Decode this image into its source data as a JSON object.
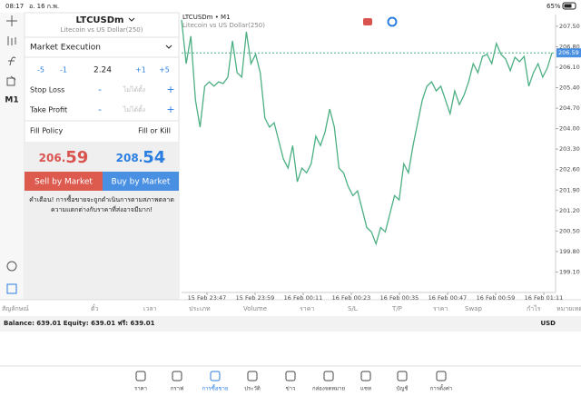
{
  "status_bar": {
    "time": "08:17",
    "date": "อ. 16 ก.พ.",
    "battery": "65%"
  },
  "toolbar": {
    "timeframe": "M1"
  },
  "order_panel": {
    "symbol": "LTCUSDm",
    "description": "Litecoin vs US Dollar(250)",
    "execution": "Market Execution",
    "volume_steps": [
      "-5",
      "-1",
      "+1",
      "+5"
    ],
    "volume": "2.24",
    "stop_loss": {
      "label": "Stop Loss",
      "minus": "-",
      "value": "ไม่ได้ตั้ง",
      "plus": "+"
    },
    "take_profit": {
      "label": "Take Profit",
      "minus": "-",
      "value": "ไม่ได้ตั้ง",
      "plus": "+"
    },
    "fill_policy": {
      "label": "Fill Policy",
      "value": "Fill or Kill"
    },
    "bid": {
      "main": "206.",
      "big": "59"
    },
    "ask": {
      "main": "208.",
      "big": "54"
    },
    "sell_button": "Sell by Market",
    "buy_button": "Buy by Market",
    "warning": [
      "คำเตือน! การซื้อขายจะถูกดำเนินการตามสภาพตลาด",
      "ความแตกต่างกับราคาที่ส่งอาจมีมาก!"
    ]
  },
  "chart_data": {
    "type": "line",
    "title": "LTCUSDm • M1",
    "subtitle": "Litecoin vs US Dollar(250)",
    "color": "#4caf82",
    "values": [
      207.72,
      206.22,
      207.16,
      204.98,
      204.05,
      205.45,
      205.6,
      205.45,
      205.6,
      205.54,
      205.76,
      207.0,
      205.91,
      205.76,
      207.31,
      206.22,
      206.54,
      205.91,
      204.36,
      204.05,
      204.2,
      203.58,
      202.96,
      202.65,
      203.42,
      202.18,
      202.65,
      202.49,
      202.8,
      203.74,
      203.42,
      203.89,
      204.67,
      204.05,
      202.65,
      202.49,
      202.02,
      201.71,
      201.87,
      201.25,
      200.62,
      200.47,
      200.06,
      200.62,
      200.47,
      201.09,
      201.71,
      201.56,
      202.8,
      202.49,
      203.42,
      204.2,
      204.98,
      205.45,
      205.6,
      205.29,
      205.45,
      204.98,
      204.51,
      205.29,
      204.82,
      205.14,
      205.6,
      206.22,
      205.91,
      206.47,
      206.54,
      206.22,
      206.91,
      206.54,
      206.38,
      205.98,
      206.44,
      206.29,
      206.47,
      205.45,
      205.91,
      206.22,
      205.76,
      206.07,
      206.59
    ],
    "ylim": [
      198.4,
      207.9
    ],
    "yticks": [
      {
        "value": 207.5,
        "label": "207.50"
      },
      {
        "value": 206.8,
        "label": "206.80"
      },
      {
        "value": 206.1,
        "label": "206.10"
      },
      {
        "value": 205.4,
        "label": "205.40"
      },
      {
        "value": 204.7,
        "label": "204.70"
      },
      {
        "value": 204.0,
        "label": "204.00"
      },
      {
        "value": 203.3,
        "label": "203.30"
      },
      {
        "value": 202.6,
        "label": "202.60"
      },
      {
        "value": 201.9,
        "label": "201.90"
      },
      {
        "value": 201.2,
        "label": "201.20"
      },
      {
        "value": 200.5,
        "label": "200.50"
      },
      {
        "value": 199.8,
        "label": "199.80"
      },
      {
        "value": 199.1,
        "label": "199.10"
      }
    ],
    "bid_line": 206.59,
    "x_labels": [
      "15 Feb 23:47",
      "15 Feb 23:59",
      "16 Feb 00:11",
      "16 Feb 00:23",
      "16 Feb 00:35",
      "16 Feb 00:47",
      "16 Feb 00:59",
      "16 Feb 01:11"
    ]
  },
  "trade_table": {
    "columns": [
      "สัญลักษณ์",
      "ตั๋ว",
      "เวลา",
      "ประเภท",
      "Volume",
      "ราคา",
      "S/L",
      "T/P",
      "ราคา",
      "Swap",
      "กำไร",
      "หมายเหตุ"
    ],
    "balance": "Balance: 639.01 Equity: 639.01 ฟรี: 639.01",
    "currency": "USD"
  },
  "nav": [
    "ราคา",
    "กราฟ",
    "การซื้อขาย",
    "ประวัติ",
    "ข่าว",
    "กล่องจดหมาย",
    "แชท",
    "บัญชี",
    "การตั้งค่า"
  ]
}
